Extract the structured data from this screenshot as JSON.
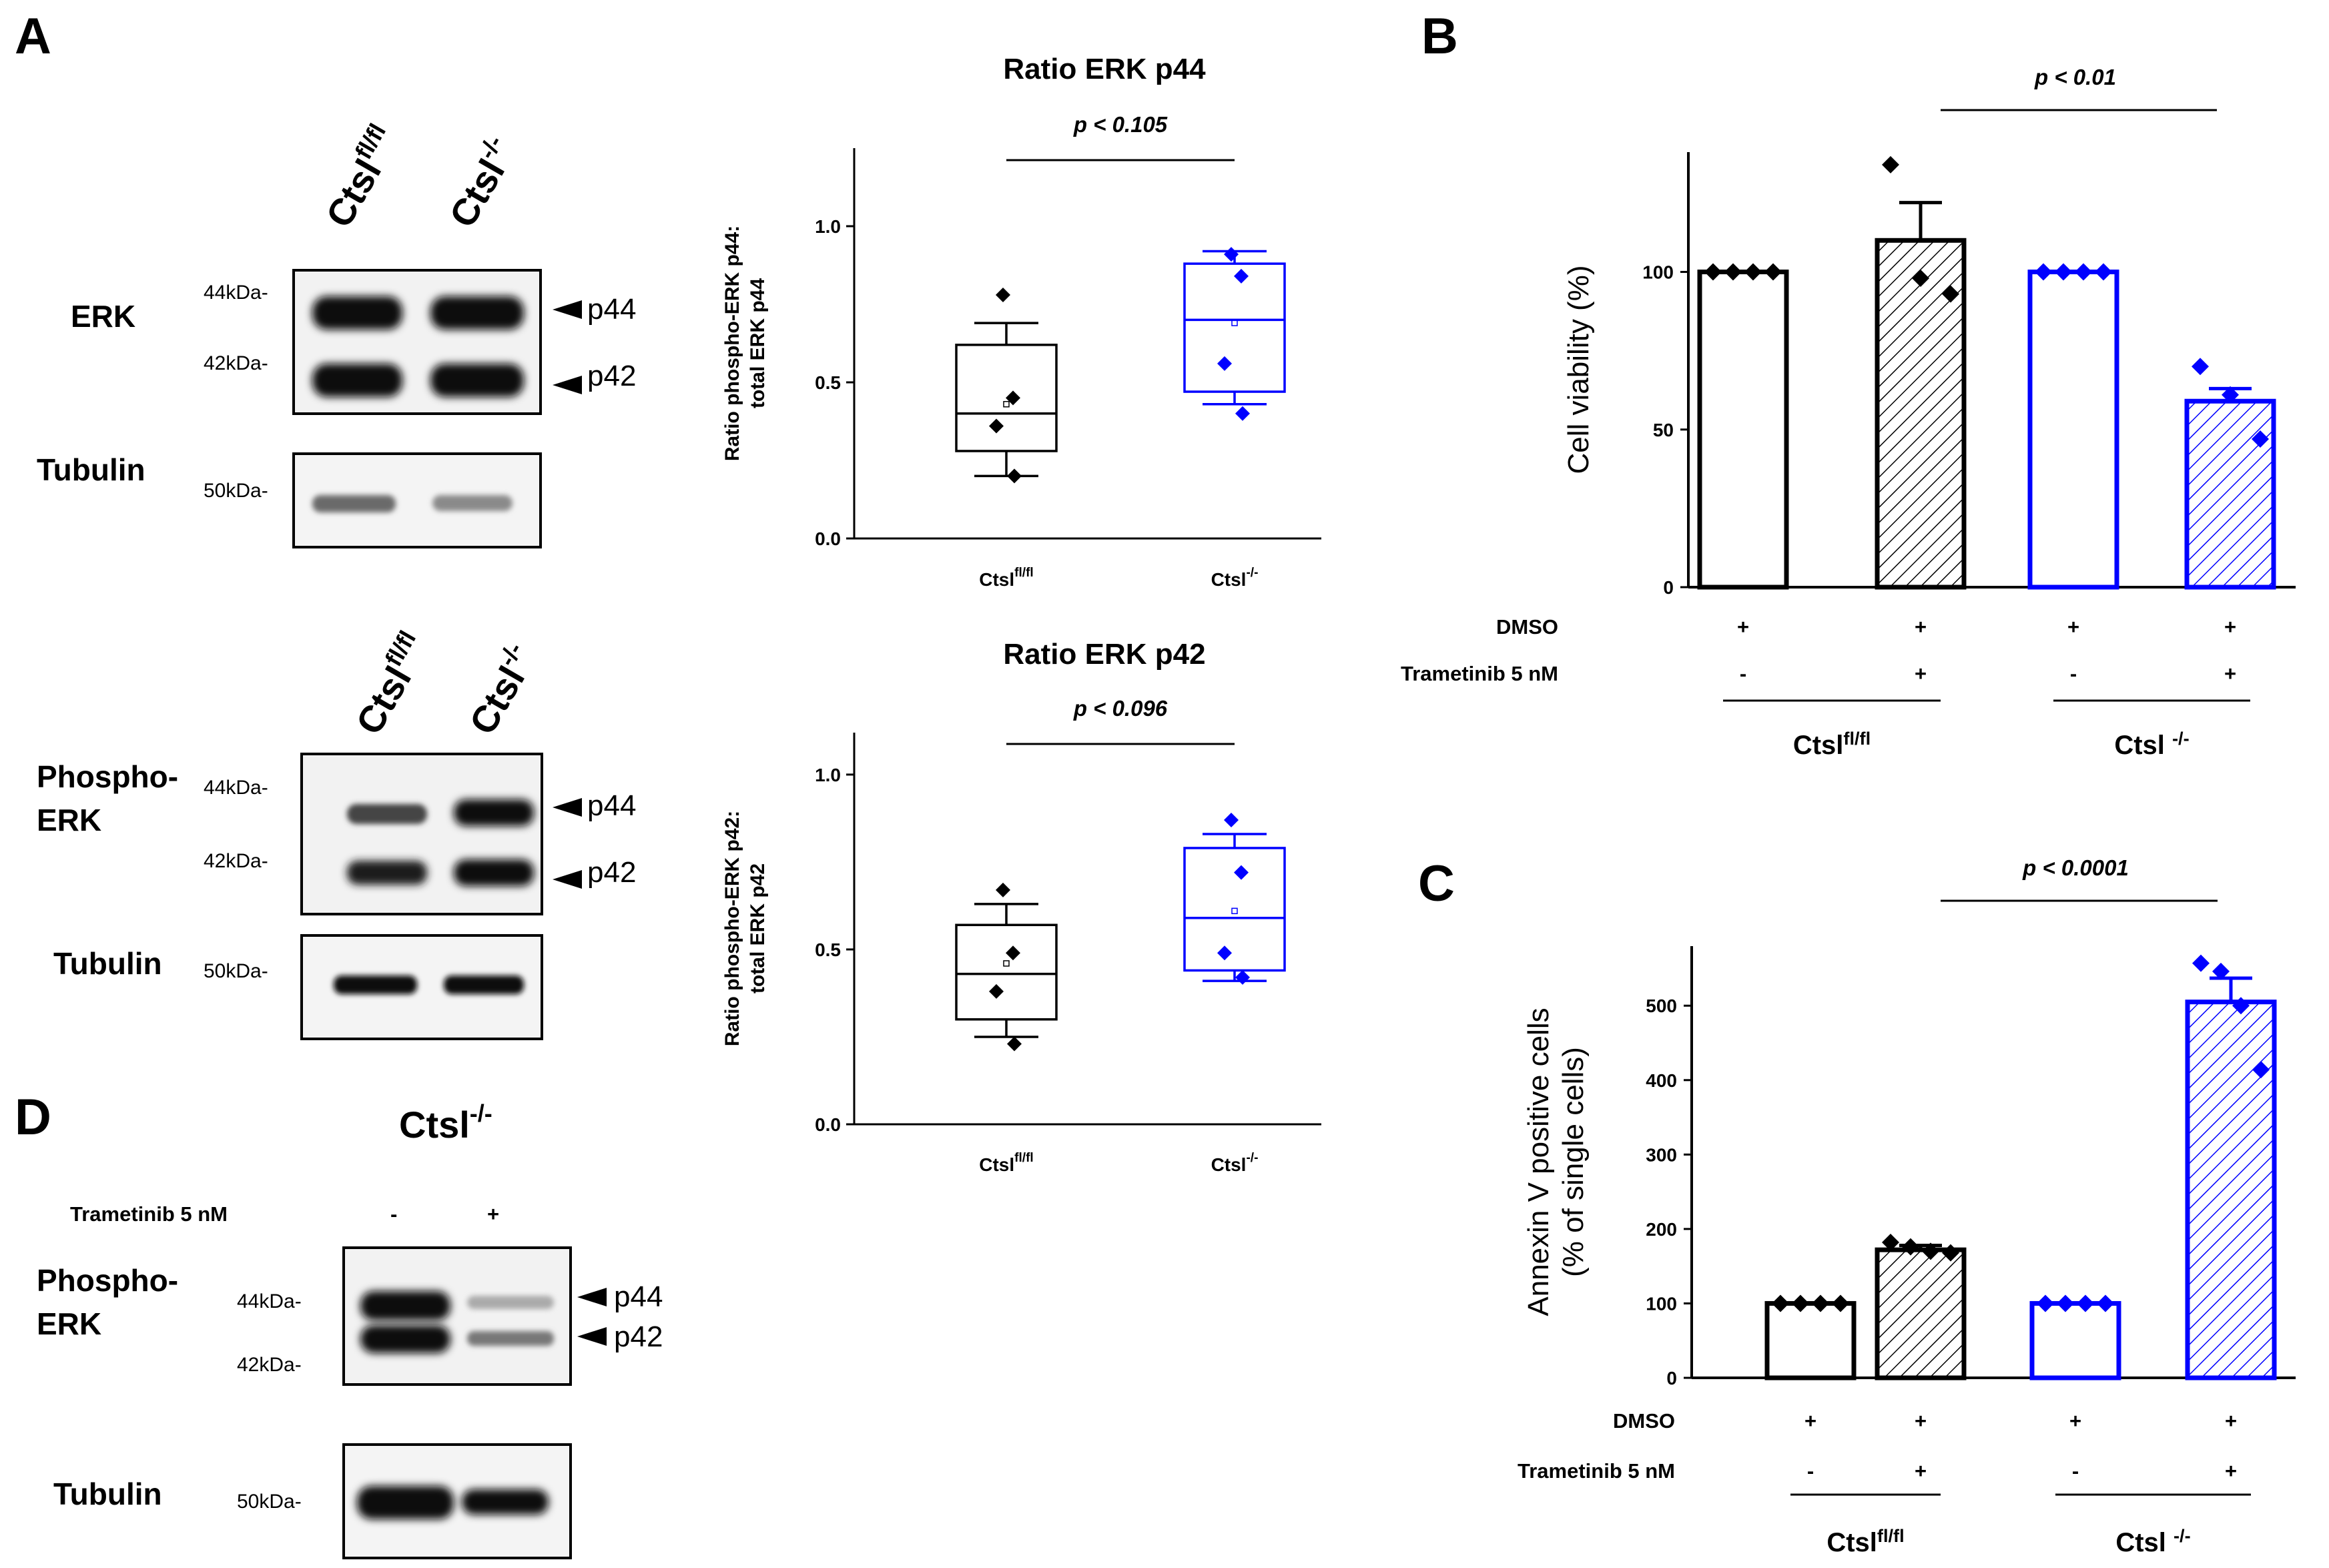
{
  "panels": {
    "a": "A",
    "b": "B",
    "c": "C",
    "d": "D"
  },
  "blot_a_top": {
    "lanes": [
      "Ctsl",
      "fl/fl",
      "Ctsl",
      "-/-"
    ],
    "erk_label": "ERK",
    "tubulin_label": "Tubulin",
    "kda_44": "44kDa-",
    "kda_42": "42kDa-",
    "kda_50": "50kDa-",
    "p44": "p44",
    "p42": "p42"
  },
  "blot_a_bottom": {
    "lanes": [
      "Ctsl",
      "fl/fl",
      "Ctsl",
      "-/-"
    ],
    "perk_label_1": "Phospho-",
    "perk_label_2": "ERK",
    "tubulin_label": "Tubulin",
    "kda_44": "44kDa-",
    "kda_42": "42kDa-",
    "kda_50": "50kDa-",
    "p44": "p44",
    "p42": "p42"
  },
  "blot_d": {
    "title_base": "Ctsl",
    "title_sup": "-/-",
    "trametinib": "Trametinib 5 nM",
    "minus": "-",
    "plus": "+",
    "perk_label_1": "Phospho-",
    "perk_label_2": "ERK",
    "tubulin_label": "Tubulin",
    "kda_44": "44kDa-",
    "kda_42": "42kDa-",
    "kda_50": "50kDa-",
    "p44": "p44",
    "p42": "p42"
  },
  "chart_data": [
    {
      "id": "box_p44",
      "type": "box",
      "title": "Ratio ERK p44",
      "pvalue": "p < 0.105",
      "ylabel_1": "Ratio phospho-ERK p44:",
      "ylabel_2": "total ERK p44",
      "ylim": [
        0,
        1.25
      ],
      "yticks": [
        {
          "v": 0,
          "t": "0.0"
        },
        {
          "v": 0.5,
          "t": "0.5"
        },
        {
          "v": 1,
          "t": "1.0"
        }
      ],
      "groups": [
        {
          "base": "Ctsl",
          "sup": "fl/fl",
          "color": "#000000",
          "min": 0.2,
          "q1": 0.28,
          "median": 0.4,
          "q3": 0.62,
          "max": 0.69,
          "mean": 0.43,
          "points": [
            0.78,
            0.45,
            0.36,
            0.2
          ]
        },
        {
          "base": "Ctsl",
          "sup": "-/-",
          "color": "#0000ff",
          "min": 0.43,
          "q1": 0.47,
          "median": 0.7,
          "q3": 0.88,
          "max": 0.92,
          "mean": 0.69,
          "points": [
            0.91,
            0.84,
            0.56,
            0.4
          ]
        }
      ]
    },
    {
      "id": "box_p42",
      "type": "box",
      "title": "Ratio ERK p42",
      "pvalue": "p < 0.096",
      "ylabel_1": "Ratio phospho-ERK p42:",
      "ylabel_2": "total ERK p42",
      "ylim": [
        0,
        1.12
      ],
      "yticks": [
        {
          "v": 0,
          "t": "0.0"
        },
        {
          "v": 0.5,
          "t": "0.5"
        },
        {
          "v": 1,
          "t": "1.0"
        }
      ],
      "groups": [
        {
          "base": "Ctsl",
          "sup": "fl/fl",
          "color": "#000000",
          "min": 0.25,
          "q1": 0.3,
          "median": 0.43,
          "q3": 0.57,
          "max": 0.63,
          "mean": 0.46,
          "points": [
            0.67,
            0.49,
            0.38,
            0.23
          ]
        },
        {
          "base": "Ctsl",
          "sup": "-/-",
          "color": "#0000ff",
          "min": 0.41,
          "q1": 0.44,
          "median": 0.59,
          "q3": 0.79,
          "max": 0.83,
          "mean": 0.61,
          "points": [
            0.87,
            0.72,
            0.49,
            0.42
          ]
        }
      ]
    },
    {
      "id": "bar_b",
      "type": "bar",
      "ylabel": "Cell viability (%)",
      "pvalue": "p < 0.01",
      "ylim": [
        0,
        138
      ],
      "yticks": [
        {
          "v": 0,
          "t": "0"
        },
        {
          "v": 50,
          "t": "50"
        },
        {
          "v": 100,
          "t": "100"
        }
      ],
      "conditions": [
        "DMSO",
        "Trametinib 5 nM"
      ],
      "bars": [
        {
          "value": 100,
          "err": 0,
          "color": "#000000",
          "hatch": false,
          "points": [
            100,
            100,
            100,
            100
          ],
          "dmso": "+",
          "tram": "-"
        },
        {
          "value": 110,
          "err": 12,
          "color": "#000000",
          "hatch": true,
          "points": [
            134,
            98,
            93
          ],
          "dmso": "+",
          "tram": "+"
        },
        {
          "value": 100,
          "err": 0,
          "color": "#0000ff",
          "hatch": false,
          "points": [
            100,
            100,
            100,
            100
          ],
          "dmso": "+",
          "tram": "-"
        },
        {
          "value": 59,
          "err": 4,
          "color": "#0000ff",
          "hatch": true,
          "points": [
            70,
            61,
            47
          ],
          "dmso": "+",
          "tram": "+"
        }
      ],
      "groups": [
        {
          "base": "Ctsl",
          "sup": "fl/fl"
        },
        {
          "base": "Ctsl ",
          "sup": "-/-"
        }
      ]
    },
    {
      "id": "bar_c",
      "type": "bar",
      "ylabel_1": "Annexin V positive cells",
      "ylabel_2": "(% of single cells)",
      "pvalue": "p < 0.0001",
      "ylim": [
        0,
        580
      ],
      "yticks": [
        {
          "v": 0,
          "t": "0"
        },
        {
          "v": 100,
          "t": "100"
        },
        {
          "v": 200,
          "t": "200"
        },
        {
          "v": 300,
          "t": "300"
        },
        {
          "v": 400,
          "t": "400"
        },
        {
          "v": 500,
          "t": "500"
        }
      ],
      "conditions": [
        "DMSO",
        "Trametinib 5 nM"
      ],
      "bars": [
        {
          "value": 100,
          "err": 0,
          "color": "#000000",
          "hatch": false,
          "points": [
            100,
            100,
            100,
            100
          ],
          "dmso": "+",
          "tram": "-"
        },
        {
          "value": 172,
          "err": 6,
          "color": "#000000",
          "hatch": true,
          "points": [
            182,
            176,
            170,
            168
          ],
          "dmso": "+",
          "tram": "+"
        },
        {
          "value": 100,
          "err": 0,
          "color": "#0000ff",
          "hatch": false,
          "points": [
            100,
            100,
            100,
            100
          ],
          "dmso": "+",
          "tram": "-"
        },
        {
          "value": 505,
          "err": 32,
          "color": "#0000ff",
          "hatch": true,
          "points": [
            557,
            546,
            500,
            414
          ],
          "dmso": "+",
          "tram": "+"
        }
      ],
      "groups": [
        {
          "base": "Ctsl",
          "sup": "fl/fl"
        },
        {
          "base": "Ctsl ",
          "sup": "-/-"
        }
      ]
    }
  ]
}
